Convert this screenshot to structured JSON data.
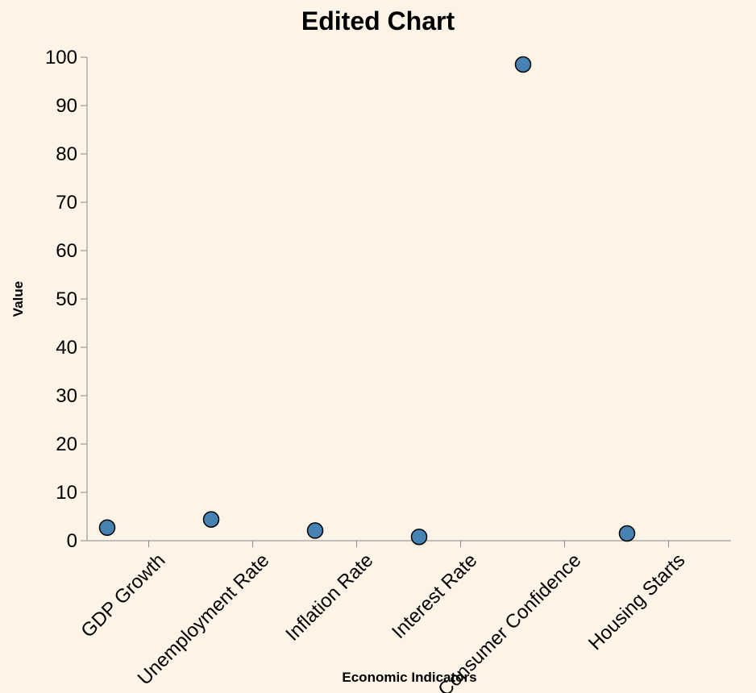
{
  "chart_data": {
    "type": "scatter",
    "title": "Edited Chart",
    "xlabel": "Economic Indicators",
    "ylabel": "Value",
    "categories": [
      "GDP Growth",
      "Unemployment Rate",
      "Inflation Rate",
      "Interest Rate",
      "Consumer Confidence",
      "Housing Starts"
    ],
    "yticks": [
      0,
      10,
      20,
      30,
      40,
      50,
      60,
      70,
      80,
      90,
      100
    ],
    "ylim": [
      0,
      100
    ],
    "grid": false,
    "point_color": "#4682b4",
    "points": [
      {
        "position": 0.0,
        "value": 2.7
      },
      {
        "position": 1.0,
        "value": 4.4
      },
      {
        "position": 2.0,
        "value": 2.1
      },
      {
        "position": 3.0,
        "value": 0.8
      },
      {
        "position": 4.0,
        "value": 98.5
      },
      {
        "position": 5.0,
        "value": 1.5
      }
    ]
  }
}
